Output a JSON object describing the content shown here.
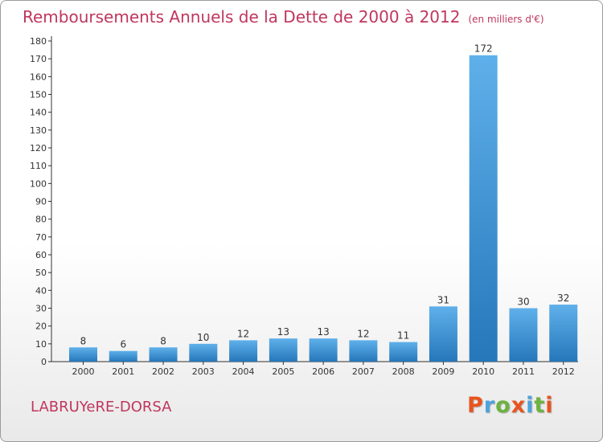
{
  "header": {
    "title": "Remboursements Annuels de la Dette de 2000 à 2012",
    "unit": "(en milliers d'€)"
  },
  "footer": {
    "commune": "LABRUYeRE-DORSA",
    "logo": "Proxiti",
    "logo_colors": [
      "#e8541e",
      "#4aa3df",
      "#6cb33f",
      "#e8541e",
      "#4aa3df",
      "#6cb33f",
      "#e8541e"
    ]
  },
  "colors": {
    "title": "#c0365e",
    "bar_top": "#5fb0ea",
    "bar_bottom": "#2577ba",
    "axis": "#333333"
  },
  "chart_data": {
    "type": "bar",
    "title": "Remboursements Annuels de la Dette de 2000 à 2012",
    "subtitle": "(en milliers d'€)",
    "categories": [
      "2000",
      "2001",
      "2002",
      "2003",
      "2004",
      "2005",
      "2006",
      "2007",
      "2008",
      "2009",
      "2010",
      "2011",
      "2012"
    ],
    "values": [
      8,
      6,
      8,
      10,
      12,
      13,
      13,
      12,
      11,
      31,
      172,
      30,
      32
    ],
    "data_labels": [
      "8",
      "6",
      "8",
      "10",
      "12",
      "13",
      "13",
      "12",
      "11",
      "31",
      "172",
      "30",
      "32"
    ],
    "ylim": [
      0,
      180
    ],
    "yticks": [
      "0",
      "10",
      "20",
      "30",
      "40",
      "50",
      "60",
      "70",
      "80",
      "90",
      "100",
      "110",
      "120",
      "130",
      "140",
      "150",
      "160",
      "170",
      "180"
    ],
    "xlabel": "",
    "ylabel": "",
    "grid": false,
    "legend": "none"
  }
}
